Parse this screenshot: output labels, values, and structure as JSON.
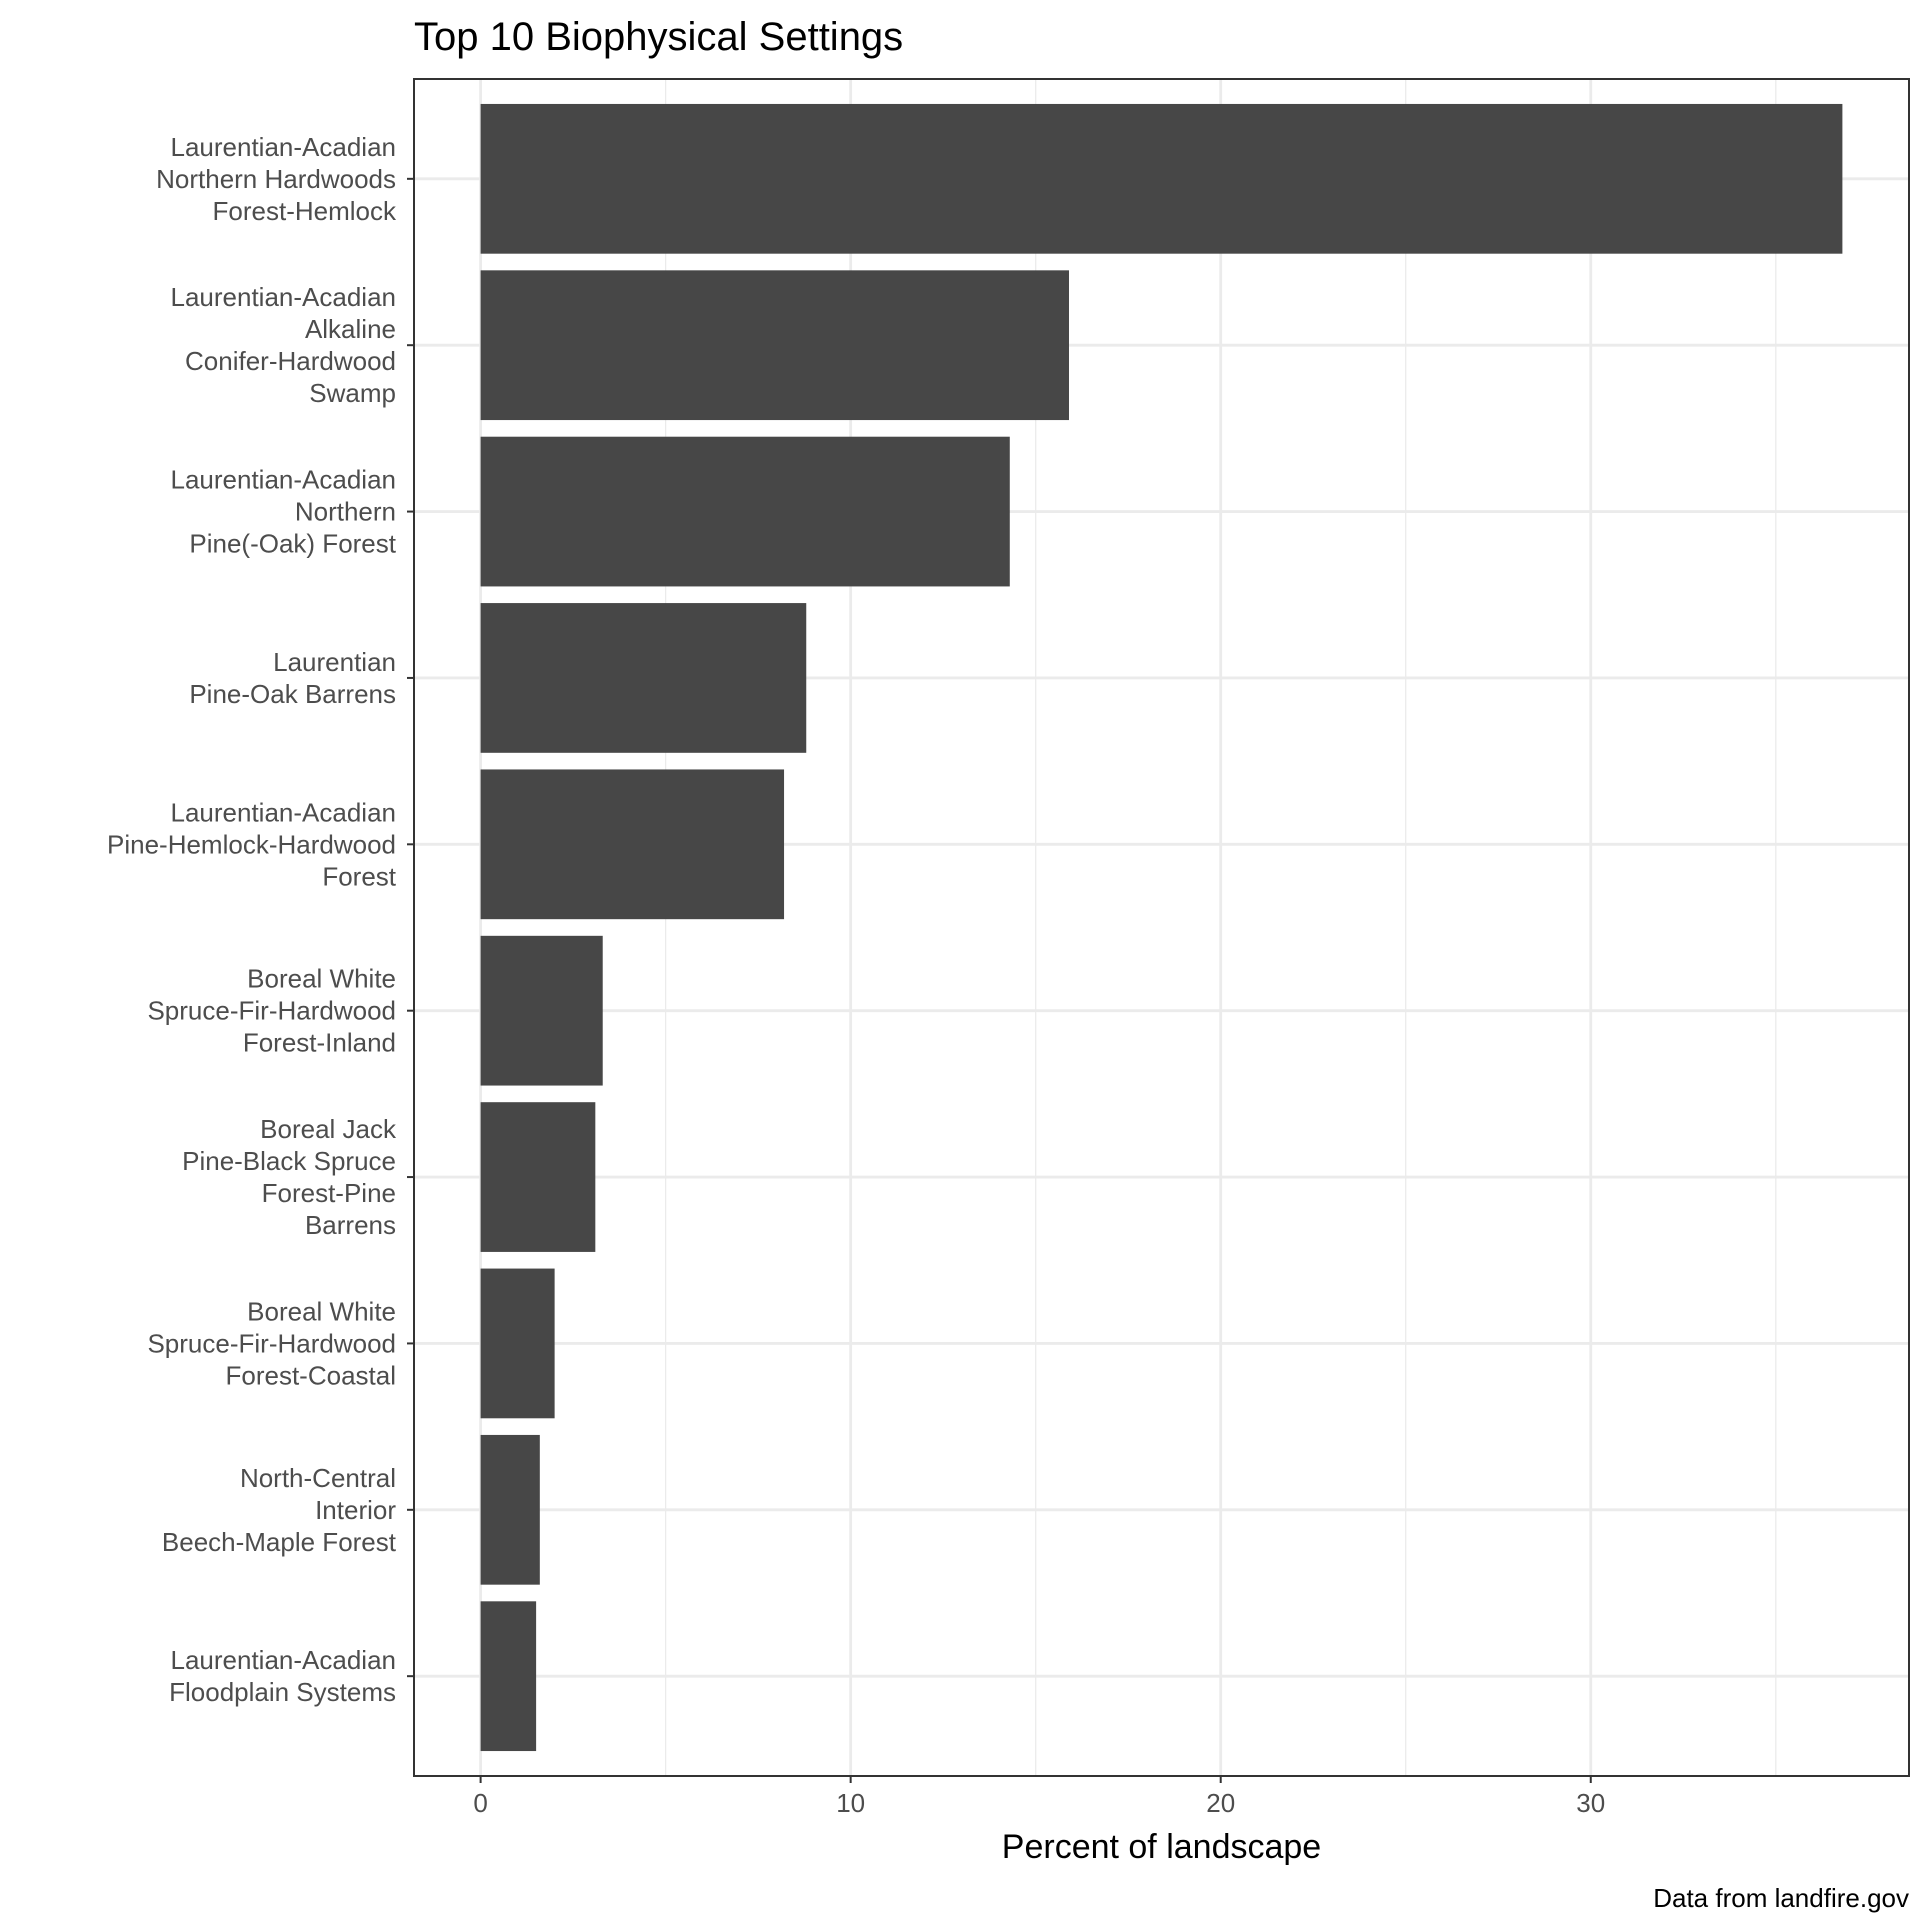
{
  "chart_data": {
    "type": "bar",
    "orientation": "horizontal",
    "title": "Top 10 Biophysical Settings",
    "xlabel": "Percent of landscape",
    "ylabel": "",
    "caption": "Data from landfire.gov",
    "categories": [
      [
        "Laurentian-Acadian",
        "Northern Hardwoods",
        "Forest-Hemlock"
      ],
      [
        "Laurentian-Acadian",
        "Alkaline",
        "Conifer-Hardwood",
        "Swamp"
      ],
      [
        "Laurentian-Acadian",
        "Northern",
        "Pine(-Oak) Forest"
      ],
      [
        "Laurentian",
        "Pine-Oak Barrens"
      ],
      [
        "Laurentian-Acadian",
        "Pine-Hemlock-Hardwood",
        "Forest"
      ],
      [
        "Boreal White",
        "Spruce-Fir-Hardwood",
        "Forest-Inland"
      ],
      [
        "Boreal Jack",
        "Pine-Black Spruce",
        "Forest-Pine",
        "Barrens"
      ],
      [
        "Boreal White",
        "Spruce-Fir-Hardwood",
        "Forest-Coastal"
      ],
      [
        "North-Central",
        "Interior",
        "Beech-Maple Forest"
      ],
      [
        "Laurentian-Acadian",
        "Floodplain Systems"
      ]
    ],
    "values": [
      36.8,
      15.9,
      14.3,
      8.8,
      8.2,
      3.3,
      3.1,
      2.0,
      1.6,
      1.5
    ],
    "xlim": [
      -1.8,
      38.6
    ],
    "xticks": [
      0,
      10,
      20,
      30
    ],
    "xminor": [
      5,
      15,
      25,
      35
    ],
    "grid": true,
    "legend": "none",
    "colors": {
      "bar": "#474747",
      "grid": "#ebebeb",
      "panel_border": "#333333",
      "tick_text": "#4d4d4d"
    }
  }
}
